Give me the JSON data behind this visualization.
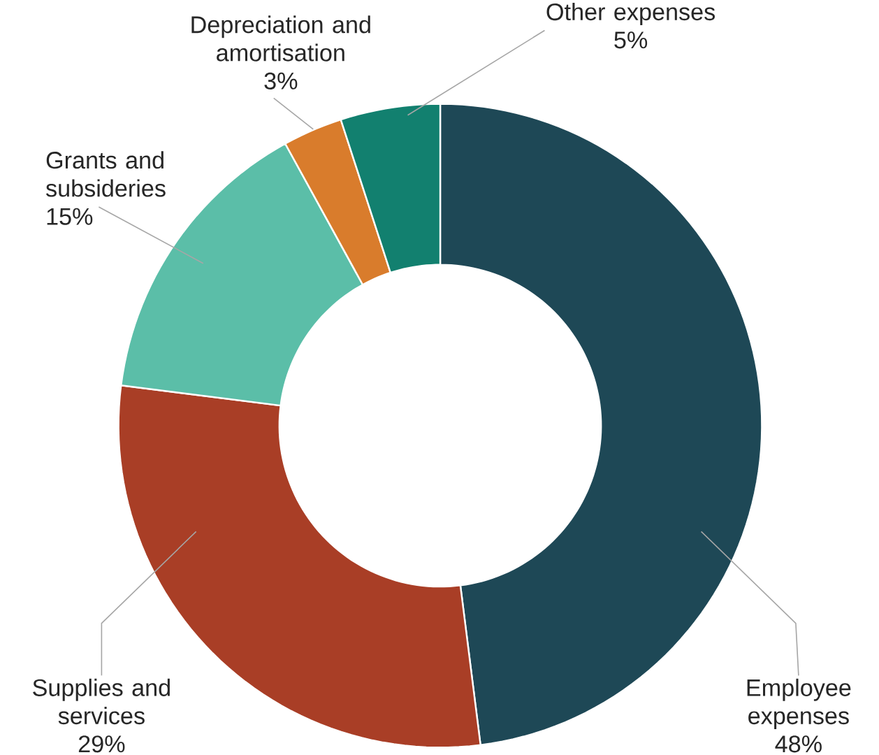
{
  "chart_data": {
    "type": "donut",
    "categories": [
      "Employee expenses",
      "Supplies and services",
      "Grants and subsideries",
      "Depreciation and amortisation",
      "Other expenses"
    ],
    "values": [
      48,
      29,
      15,
      3,
      5
    ],
    "value_labels": [
      "48%",
      "29%",
      "15%",
      "3%",
      "5%"
    ],
    "colors": [
      "#1e4856",
      "#a93e26",
      "#5bbea8",
      "#d97c2c",
      "#12806f"
    ]
  }
}
